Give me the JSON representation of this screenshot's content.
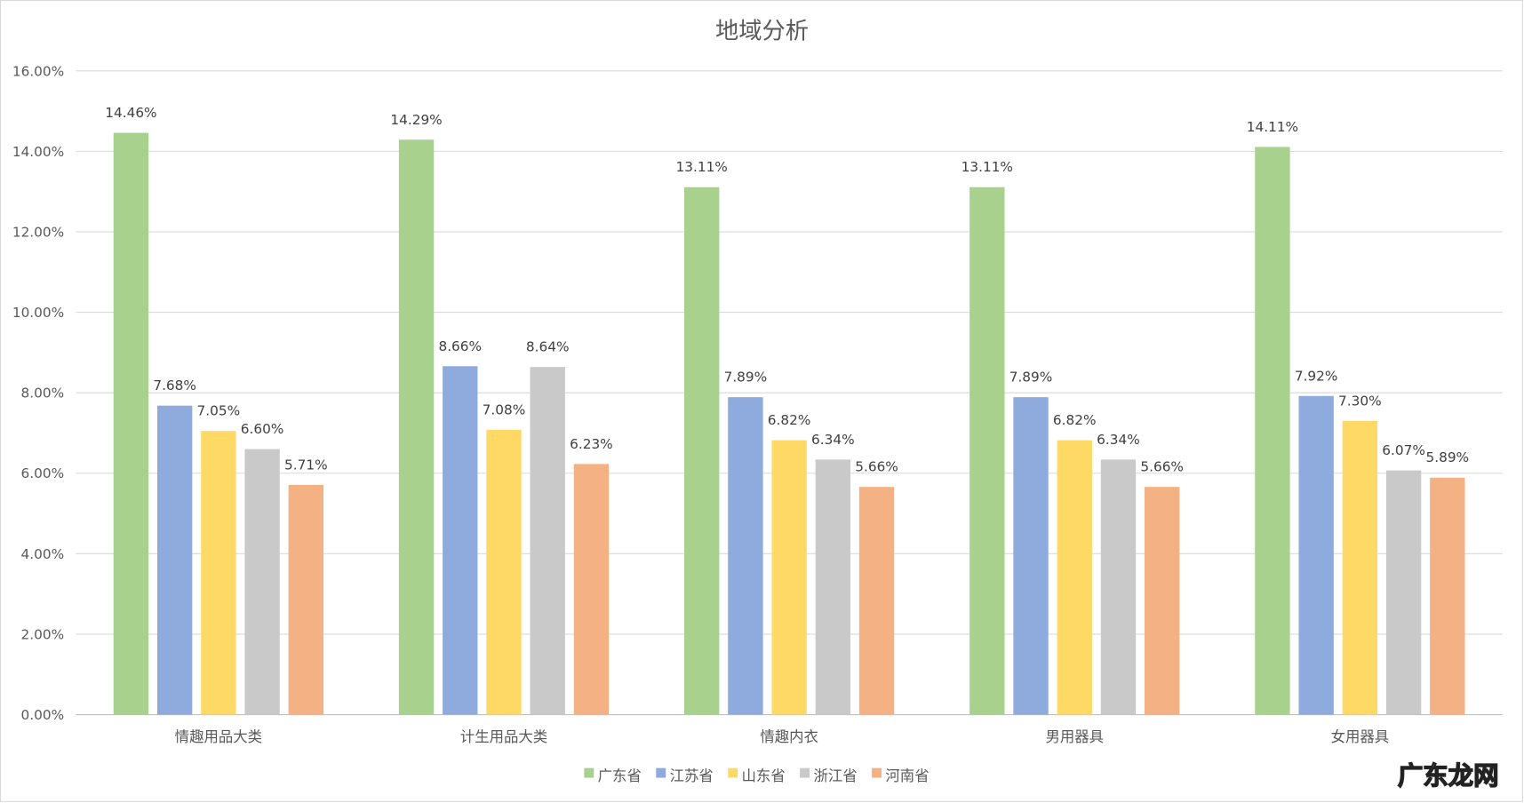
{
  "chart_data": {
    "type": "bar",
    "title": "地域分析",
    "categories": [
      "情趣用品大类",
      "计生用品大类",
      "情趣内衣",
      "男用器具",
      "女用器具"
    ],
    "series": [
      {
        "name": "广东省",
        "color": "#A9D18E",
        "values": [
          14.46,
          14.29,
          13.11,
          13.11,
          14.11
        ]
      },
      {
        "name": "江苏省",
        "color": "#8FAADC",
        "values": [
          7.68,
          8.66,
          7.89,
          7.89,
          7.92
        ]
      },
      {
        "name": "山东省",
        "color": "#FFD966",
        "values": [
          7.05,
          7.08,
          6.82,
          6.82,
          7.3
        ]
      },
      {
        "name": "浙江省",
        "color": "#C9C9C9",
        "values": [
          6.6,
          8.64,
          6.34,
          6.34,
          6.07
        ]
      },
      {
        "name": "河南省",
        "color": "#F4B183",
        "values": [
          5.71,
          6.23,
          5.66,
          5.66,
          5.89
        ]
      }
    ],
    "value_format": "percent",
    "yticks": [
      "0.00%",
      "2.00%",
      "4.00%",
      "6.00%",
      "8.00%",
      "10.00%",
      "12.00%",
      "14.00%",
      "16.00%"
    ],
    "ylim": [
      0,
      16
    ],
    "grid": true,
    "legend": "bottom",
    "xlabel": "",
    "ylabel": ""
  },
  "watermark": "广东龙网"
}
